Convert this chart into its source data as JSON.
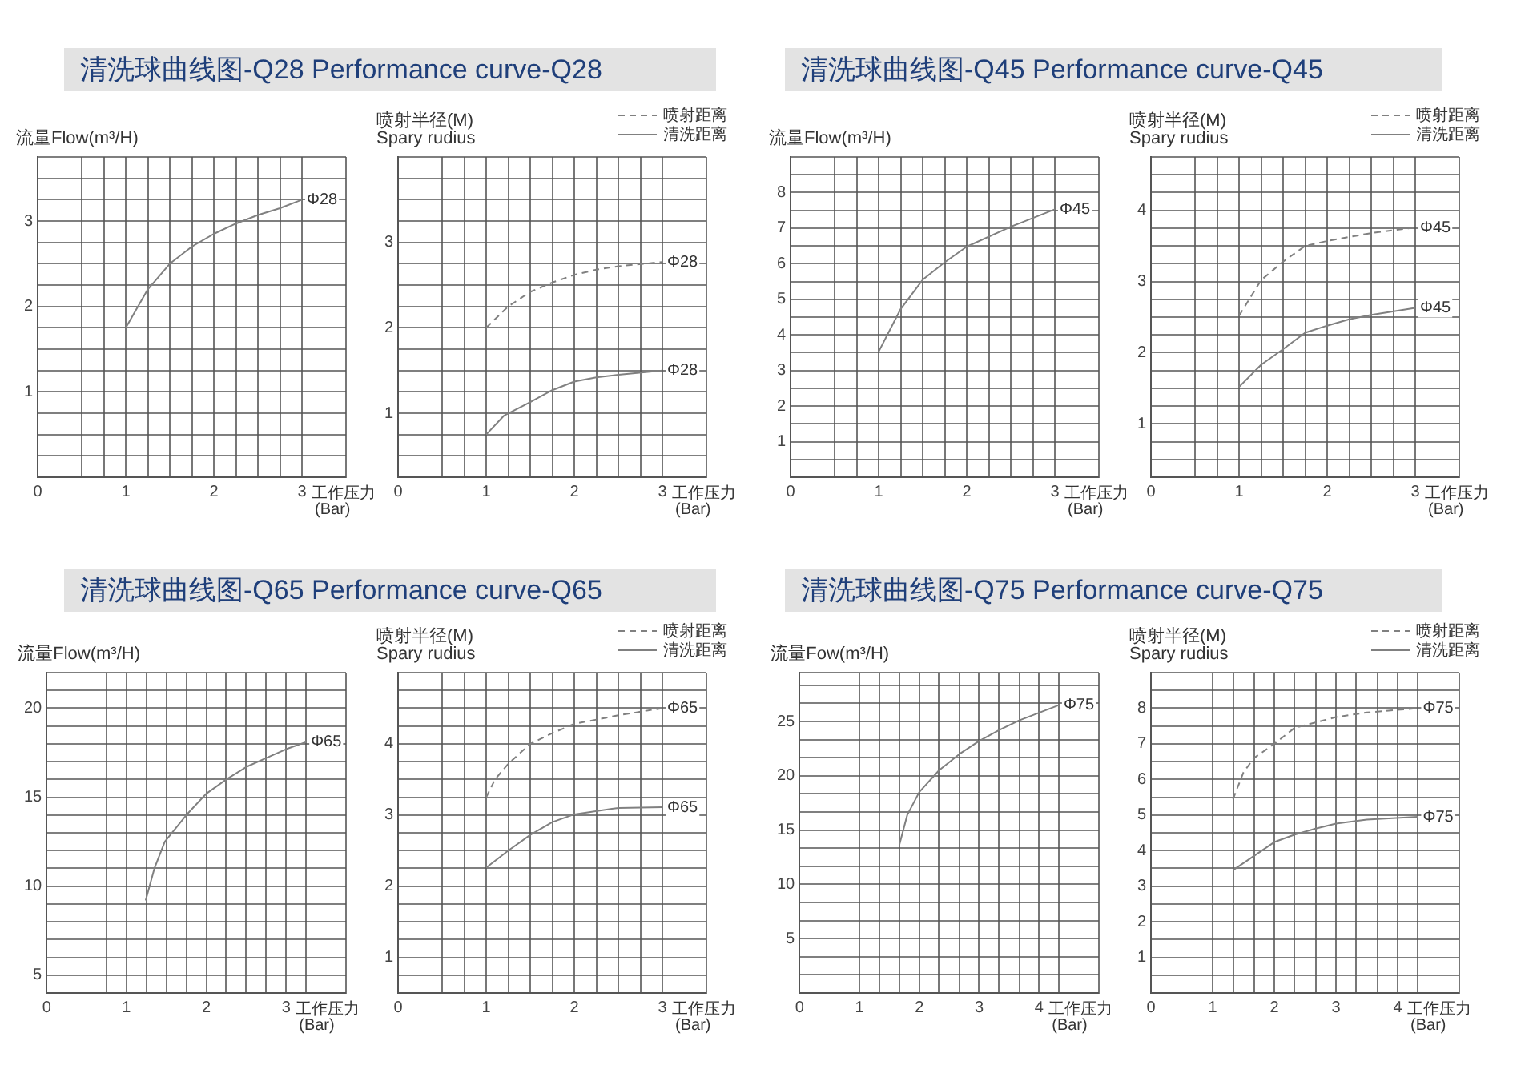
{
  "chart_data": [
    {
      "type": "line",
      "title": "清洗球曲线图-Q28 Performance curve-Q28",
      "ylabel": "流量Flow(m³/H)",
      "xlabel": "工作压力\n(Bar)",
      "grid": true,
      "marker": "none",
      "xlim": [
        0,
        3.5
      ],
      "ylim": [
        0,
        3.75
      ],
      "xticks": [
        0,
        {
          "value": 0.5,
          "label": null
        },
        {
          "value": 0.75,
          "label": null
        },
        1,
        {
          "value": 1.25,
          "label": null
        },
        {
          "value": 1.5,
          "label": null
        },
        {
          "value": 1.75,
          "label": null
        },
        2,
        {
          "value": 2.25,
          "label": null
        },
        {
          "value": 2.5,
          "label": null
        },
        {
          "value": 2.75,
          "label": null
        },
        3,
        {
          "value": 3.5,
          "label": null
        }
      ],
      "yticks": [
        {
          "value": 0,
          "label": null
        },
        {
          "value": 0.25,
          "label": null
        },
        {
          "value": 0.5,
          "label": null
        },
        {
          "value": 0.75,
          "label": null
        },
        1,
        {
          "value": 1.25,
          "label": null
        },
        {
          "value": 1.5,
          "label": null
        },
        {
          "value": 1.75,
          "label": null
        },
        2,
        {
          "value": 2.25,
          "label": null
        },
        {
          "value": 2.5,
          "label": null
        },
        {
          "value": 2.75,
          "label": null
        },
        3,
        {
          "value": 3.25,
          "label": null
        },
        {
          "value": 3.5,
          "label": null
        },
        {
          "value": 3.75,
          "label": null
        }
      ],
      "series": [
        {
          "color": "#808080",
          "line_style": "solid",
          "x": [
            1,
            1.25,
            1.5,
            1.75,
            2,
            2.25,
            2.5,
            2.75,
            3
          ],
          "values": [
            1.75,
            2.2,
            2.5,
            2.7,
            2.85,
            2.97,
            3.07,
            3.15,
            3.25
          ]
        }
      ],
      "annotations": [
        {
          "text": "Φ28",
          "x": 3,
          "y": 3.25
        }
      ]
    },
    {
      "type": "line",
      "ylabel": "喷射半径(M)\nSpary rudius",
      "xlabel": "工作压力\n(Bar)",
      "grid": true,
      "marker": "none",
      "legend": "top right",
      "xlim": [
        0,
        3.5
      ],
      "ylim": [
        0.25,
        4
      ],
      "xticks": [
        0,
        {
          "value": 0.5,
          "label": null
        },
        {
          "value": 0.75,
          "label": null
        },
        1,
        {
          "value": 1.25,
          "label": null
        },
        {
          "value": 1.5,
          "label": null
        },
        {
          "value": 1.75,
          "label": null
        },
        2,
        {
          "value": 2.25,
          "label": null
        },
        {
          "value": 2.5,
          "label": null
        },
        {
          "value": 2.75,
          "label": null
        },
        3,
        {
          "value": 3.5,
          "label": null
        }
      ],
      "yticks": [
        {
          "value": 0.25,
          "label": null
        },
        {
          "value": 0.5,
          "label": null
        },
        {
          "value": 0.75,
          "label": null
        },
        1,
        {
          "value": 1.25,
          "label": null
        },
        {
          "value": 1.5,
          "label": null
        },
        {
          "value": 1.75,
          "label": null
        },
        2,
        {
          "value": 2.25,
          "label": null
        },
        {
          "value": 2.5,
          "label": null
        },
        {
          "value": 2.75,
          "label": null
        },
        3,
        {
          "value": 3.25,
          "label": null
        },
        {
          "value": 3.5,
          "label": null
        },
        {
          "value": 3.75,
          "label": null
        },
        {
          "value": 4,
          "label": null
        }
      ],
      "series": [
        {
          "name": "喷射距离",
          "color": "#808080",
          "line_style": "dashed",
          "x": [
            1,
            1.25,
            1.5,
            1.75,
            2,
            2.25,
            2.5,
            3
          ],
          "values": [
            2.0,
            2.25,
            2.42,
            2.53,
            2.62,
            2.68,
            2.72,
            2.77
          ]
        },
        {
          "name": "清洗距离",
          "color": "#808080",
          "line_style": "solid",
          "x": [
            1,
            1.2,
            1.5,
            1.75,
            2,
            2.25,
            2.5,
            3
          ],
          "values": [
            0.75,
            0.97,
            1.13,
            1.27,
            1.37,
            1.42,
            1.45,
            1.5
          ]
        }
      ],
      "annotations": [
        {
          "text": "Φ28",
          "x": 3,
          "y": 2.77
        },
        {
          "text": "Φ28",
          "x": 3,
          "y": 1.5
        }
      ]
    },
    {
      "type": "line",
      "title": "清洗球曲线图-Q45 Performance curve-Q45",
      "ylabel": "流量Flow(m³/H)",
      "xlabel": "工作压力\n(Bar)",
      "grid": true,
      "marker": "none",
      "xlim": [
        0,
        3.5
      ],
      "ylim": [
        0,
        9
      ],
      "xticks": [
        0,
        {
          "value": 0.5,
          "label": null
        },
        {
          "value": 0.75,
          "label": null
        },
        1,
        {
          "value": 1.25,
          "label": null
        },
        {
          "value": 1.5,
          "label": null
        },
        {
          "value": 1.75,
          "label": null
        },
        2,
        {
          "value": 2.25,
          "label": null
        },
        {
          "value": 2.5,
          "label": null
        },
        {
          "value": 2.75,
          "label": null
        },
        3,
        {
          "value": 3.5,
          "label": null
        }
      ],
      "yticks": [
        {
          "value": 0,
          "label": null
        },
        {
          "value": 0.5,
          "label": null
        },
        1,
        {
          "value": 1.5,
          "label": null
        },
        2,
        {
          "value": 2.5,
          "label": null
        },
        3,
        {
          "value": 3.5,
          "label": null
        },
        4,
        {
          "value": 4.5,
          "label": null
        },
        5,
        {
          "value": 5.5,
          "label": null
        },
        6,
        {
          "value": 6.5,
          "label": null
        },
        7,
        {
          "value": 7.5,
          "label": null
        },
        8,
        {
          "value": 8.5,
          "label": null
        },
        {
          "value": 9,
          "label": null
        }
      ],
      "series": [
        {
          "color": "#808080",
          "line_style": "solid",
          "x": [
            1,
            1.25,
            1.5,
            1.75,
            2,
            2.5,
            3
          ],
          "values": [
            3.53,
            4.73,
            5.55,
            6.04,
            6.48,
            7.04,
            7.53
          ]
        }
      ],
      "annotations": [
        {
          "text": "Φ45",
          "x": 3,
          "y": 7.53
        }
      ]
    },
    {
      "type": "line",
      "ylabel": "喷射半径(M)\nSpary rudius",
      "xlabel": "工作压力\n(Bar)",
      "grid": true,
      "marker": "none",
      "legend": "top right",
      "xlim": [
        0,
        3.5
      ],
      "ylim": [
        0.25,
        4.75
      ],
      "xticks": [
        0,
        {
          "value": 0.5,
          "label": null
        },
        {
          "value": 0.75,
          "label": null
        },
        1,
        {
          "value": 1.25,
          "label": null
        },
        {
          "value": 1.5,
          "label": null
        },
        {
          "value": 1.75,
          "label": null
        },
        2,
        {
          "value": 2.25,
          "label": null
        },
        {
          "value": 2.5,
          "label": null
        },
        {
          "value": 2.75,
          "label": null
        },
        3,
        {
          "value": 3.5,
          "label": null
        }
      ],
      "yticks": [
        {
          "value": 0.25,
          "label": null
        },
        {
          "value": 0.5,
          "label": null
        },
        {
          "value": 0.75,
          "label": null
        },
        1,
        {
          "value": 1.25,
          "label": null
        },
        {
          "value": 1.5,
          "label": null
        },
        {
          "value": 1.75,
          "label": null
        },
        2,
        {
          "value": 2.25,
          "label": null
        },
        {
          "value": 2.5,
          "label": null
        },
        {
          "value": 2.75,
          "label": null
        },
        3,
        {
          "value": 3.25,
          "label": null
        },
        {
          "value": 3.5,
          "label": null
        },
        {
          "value": 3.75,
          "label": null
        },
        4,
        {
          "value": 4.25,
          "label": null
        },
        {
          "value": 4.5,
          "label": null
        },
        {
          "value": 4.75,
          "label": null
        }
      ],
      "series": [
        {
          "name": "喷射距离",
          "color": "#808080",
          "line_style": "dashed",
          "x": [
            1,
            1.25,
            1.5,
            1.75,
            2,
            2.5,
            3
          ],
          "values": [
            2.52,
            3.02,
            3.28,
            3.5,
            3.57,
            3.68,
            3.76
          ]
        },
        {
          "name": "清洗距离",
          "color": "#808080",
          "line_style": "solid",
          "x": [
            1,
            1.25,
            1.5,
            1.75,
            2,
            2.25,
            2.5,
            3
          ],
          "values": [
            1.52,
            1.83,
            2.05,
            2.28,
            2.38,
            2.47,
            2.53,
            2.63
          ]
        }
      ],
      "annotations": [
        {
          "text": "Φ45",
          "x": 3,
          "y": 3.76
        },
        {
          "text": "Φ45",
          "x": 3,
          "y": 2.63
        }
      ]
    },
    {
      "type": "line",
      "title": "清洗球曲线图-Q65 Performance curve-Q65",
      "ylabel": "流量Flow(m³/H)",
      "xlabel": "工作压力\n(Bar)",
      "grid": true,
      "marker": "none",
      "xlim": [
        0,
        3.75
      ],
      "ylim": [
        4,
        22
      ],
      "xticks": [
        0,
        {
          "value": 0.75,
          "label": null
        },
        1,
        {
          "value": 1.25,
          "label": null
        },
        {
          "value": 1.5,
          "label": null
        },
        {
          "value": 1.75,
          "label": null
        },
        2,
        {
          "value": 2.25,
          "label": null
        },
        {
          "value": 2.5,
          "label": null
        },
        {
          "value": 2.75,
          "label": null
        },
        3,
        {
          "value": 3.25,
          "label": null
        },
        {
          "value": 3.75,
          "label": null
        }
      ],
      "yticks": [
        {
          "value": 4,
          "label": null
        },
        5,
        {
          "value": 6,
          "label": null
        },
        {
          "value": 7,
          "label": null
        },
        {
          "value": 8,
          "label": null
        },
        {
          "value": 9,
          "label": null
        },
        10,
        {
          "value": 11,
          "label": null
        },
        {
          "value": 12,
          "label": null
        },
        {
          "value": 13,
          "label": null
        },
        {
          "value": 14,
          "label": null
        },
        15,
        {
          "value": 16,
          "label": null
        },
        {
          "value": 17,
          "label": null
        },
        {
          "value": 18,
          "label": null
        },
        {
          "value": 19,
          "label": null
        },
        20,
        {
          "value": 21,
          "label": null
        },
        {
          "value": 22,
          "label": null
        }
      ],
      "series": [
        {
          "color": "#808080",
          "line_style": "solid",
          "x": [
            1.24,
            1.35,
            1.48,
            1.75,
            2,
            2.25,
            2.5,
            2.75,
            3,
            3.25
          ],
          "values": [
            9.2,
            11,
            12.5,
            14,
            15.2,
            16,
            16.7,
            17.2,
            17.7,
            18.1
          ]
        }
      ],
      "annotations": [
        {
          "text": "Φ65",
          "x": 3.25,
          "y": 18.1
        }
      ]
    },
    {
      "type": "line",
      "ylabel": "喷射半径(M)\nSpary rudius",
      "xlabel": "工作压力\n(Bar)",
      "grid": true,
      "marker": "none",
      "legend": "top right",
      "xlim": [
        0,
        3.5
      ],
      "ylim": [
        0.5,
        5
      ],
      "xticks": [
        0,
        {
          "value": 0.5,
          "label": null
        },
        {
          "value": 0.75,
          "label": null
        },
        1,
        {
          "value": 1.25,
          "label": null
        },
        {
          "value": 1.5,
          "label": null
        },
        {
          "value": 1.75,
          "label": null
        },
        2,
        {
          "value": 2.25,
          "label": null
        },
        {
          "value": 2.5,
          "label": null
        },
        {
          "value": 2.75,
          "label": null
        },
        3,
        {
          "value": 3.5,
          "label": null
        }
      ],
      "yticks": [
        {
          "value": 0.5,
          "label": null
        },
        {
          "value": 0.75,
          "label": null
        },
        1,
        {
          "value": 1.25,
          "label": null
        },
        {
          "value": 1.5,
          "label": null
        },
        {
          "value": 1.75,
          "label": null
        },
        2,
        {
          "value": 2.25,
          "label": null
        },
        {
          "value": 2.5,
          "label": null
        },
        {
          "value": 2.75,
          "label": null
        },
        3,
        {
          "value": 3.25,
          "label": null
        },
        {
          "value": 3.5,
          "label": null
        },
        {
          "value": 3.75,
          "label": null
        },
        4,
        {
          "value": 4.25,
          "label": null
        },
        {
          "value": 4.5,
          "label": null
        },
        {
          "value": 4.75,
          "label": null
        },
        {
          "value": 5,
          "label": null
        }
      ],
      "series": [
        {
          "name": "喷射距离",
          "color": "#808080",
          "line_style": "dashed",
          "x": [
            1,
            1.1,
            1.25,
            1.5,
            1.75,
            2,
            2.5,
            3
          ],
          "values": [
            3.25,
            3.5,
            3.72,
            4.0,
            4.15,
            4.28,
            4.4,
            4.5
          ]
        },
        {
          "name": "清洗距离",
          "color": "#808080",
          "line_style": "solid",
          "x": [
            1,
            1.25,
            1.5,
            1.75,
            2,
            2.5,
            3
          ],
          "values": [
            2.26,
            2.5,
            2.72,
            2.9,
            3.01,
            3.1,
            3.11
          ]
        }
      ],
      "annotations": [
        {
          "text": "Φ65",
          "x": 3,
          "y": 4.5
        },
        {
          "text": "Φ65",
          "x": 3,
          "y": 3.11
        }
      ]
    },
    {
      "type": "line",
      "title": "清洗球曲线图-Q75 Performance curve-Q75",
      "ylabel": "流量Fow(m³/H)",
      "xlabel": "工作压力\n(Bar)",
      "grid": true,
      "marker": "none",
      "xlim": [
        0,
        5
      ],
      "ylim": [
        0,
        29.5
      ],
      "xticks": [
        0,
        1,
        {
          "value": 1.33,
          "label": null
        },
        {
          "value": 1.67,
          "label": null
        },
        2,
        {
          "value": 2.33,
          "label": null
        },
        {
          "value": 2.67,
          "label": null
        },
        3,
        {
          "value": 3.33,
          "label": null
        },
        {
          "value": 3.67,
          "label": null
        },
        4,
        {
          "value": 4.33,
          "label": null
        },
        {
          "value": 5,
          "label": null
        }
      ],
      "yticks": [
        {
          "value": 0,
          "label": null
        },
        {
          "value": 1.67,
          "label": null
        },
        {
          "value": 3.33,
          "label": null
        },
        5,
        {
          "value": 6.67,
          "label": null
        },
        {
          "value": 8.33,
          "label": null
        },
        10,
        {
          "value": 11.67,
          "label": null
        },
        {
          "value": 13.33,
          "label": null
        },
        15,
        {
          "value": 16.67,
          "label": null
        },
        {
          "value": 18.33,
          "label": null
        },
        20,
        {
          "value": 21.67,
          "label": null
        },
        {
          "value": 23.33,
          "label": null
        },
        25,
        {
          "value": 26.67,
          "label": null
        },
        {
          "value": 28.33,
          "label": null
        },
        {
          "value": 29.5,
          "label": null
        }
      ],
      "series": [
        {
          "color": "#808080",
          "line_style": "solid",
          "x": [
            1.67,
            1.8,
            2,
            2.33,
            2.67,
            3,
            3.33,
            3.67,
            4,
            4.33
          ],
          "values": [
            13.7,
            16.4,
            18.5,
            20.5,
            22,
            23.2,
            24.2,
            25.1,
            25.8,
            26.5
          ]
        }
      ],
      "annotations": [
        {
          "text": "Φ75",
          "x": 4.33,
          "y": 26.5
        }
      ]
    },
    {
      "type": "line",
      "ylabel": "喷射半径(M)\nSpary rudius",
      "xlabel": "工作压力\n(Bar)",
      "grid": true,
      "marker": "none",
      "legend": "top right",
      "xlim": [
        0,
        5
      ],
      "ylim": [
        0,
        9
      ],
      "xticks": [
        0,
        1,
        {
          "value": 1.33,
          "label": null
        },
        {
          "value": 1.67,
          "label": null
        },
        2,
        {
          "value": 2.33,
          "label": null
        },
        {
          "value": 2.67,
          "label": null
        },
        3,
        {
          "value": 3.33,
          "label": null
        },
        {
          "value": 3.67,
          "label": null
        },
        4,
        {
          "value": 4.33,
          "label": null
        },
        {
          "value": 5,
          "label": null
        }
      ],
      "yticks": [
        {
          "value": 0,
          "label": null
        },
        {
          "value": 0.5,
          "label": null
        },
        1,
        {
          "value": 1.5,
          "label": null
        },
        2,
        {
          "value": 2.5,
          "label": null
        },
        3,
        {
          "value": 3.5,
          "label": null
        },
        4,
        {
          "value": 4.5,
          "label": null
        },
        5,
        {
          "value": 5.5,
          "label": null
        },
        6,
        {
          "value": 6.5,
          "label": null
        },
        7,
        {
          "value": 7.5,
          "label": null
        },
        8,
        {
          "value": 8.5,
          "label": null
        },
        {
          "value": 9,
          "label": null
        }
      ],
      "series": [
        {
          "name": "喷射距离",
          "color": "#808080",
          "line_style": "dashed",
          "x": [
            1.33,
            1.5,
            1.67,
            2,
            2.33,
            2.67,
            3,
            3.5,
            4.33
          ],
          "values": [
            5.45,
            6.2,
            6.6,
            7.0,
            7.45,
            7.6,
            7.75,
            7.88,
            8.0
          ]
        },
        {
          "name": "清洗距离",
          "color": "#808080",
          "line_style": "solid",
          "x": [
            1.33,
            1.67,
            2,
            2.33,
            2.67,
            3,
            3.5,
            4.33
          ],
          "values": [
            3.45,
            3.85,
            4.24,
            4.45,
            4.62,
            4.76,
            4.87,
            4.95
          ]
        }
      ],
      "annotations": [
        {
          "text": "Φ75",
          "x": 4.33,
          "y": 8.0
        },
        {
          "text": "Φ75",
          "x": 4.33,
          "y": 4.95
        }
      ]
    }
  ]
}
